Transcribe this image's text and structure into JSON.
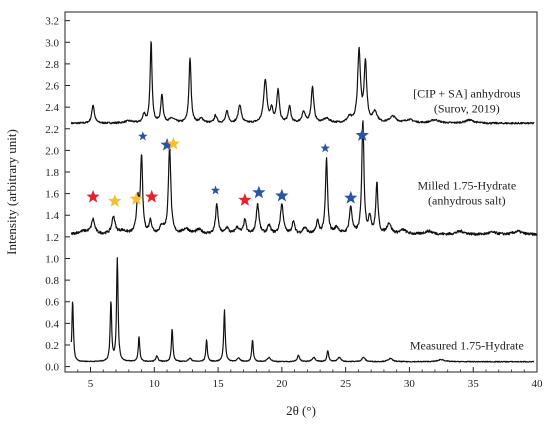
{
  "chart_data": {
    "type": "line",
    "xlabel": "2θ (°)",
    "ylabel": "Intensity (arbitrary unit)",
    "xlim": [
      3,
      40
    ],
    "ylim": [
      -0.05,
      3.28
    ],
    "xticks": [
      5,
      10,
      15,
      20,
      25,
      30,
      35,
      40
    ],
    "xtick_labels": [
      "5",
      "10",
      "15",
      "20",
      "25",
      "30",
      "35",
      "40"
    ],
    "yticks": [
      0.0,
      0.2,
      0.4,
      0.6,
      0.8,
      1.0,
      1.2,
      1.4,
      1.6,
      1.8,
      2.0,
      2.2,
      2.4,
      2.6,
      2.8,
      3.0,
      3.2
    ],
    "ytick_labels": [
      "0.0",
      "0.2",
      "0.4",
      "0.6",
      "0.8",
      "1.0",
      "1.2",
      "1.4",
      "1.6",
      "1.8",
      "2.0",
      "2.2",
      "2.4",
      "2.6",
      "2.8",
      "3.0",
      "3.2"
    ],
    "grid": false,
    "line_color": "#111111",
    "star_colors": {
      "red": "#e8202a",
      "yellow": "#f5c030",
      "blue": "#2a55a5"
    },
    "series": [
      {
        "label_lines": [
          "[CIP + SA] anhydrous",
          "(Surov, 2019)"
        ],
        "label_position": [
          34.5,
          2.35
        ],
        "baseline": 2.25,
        "x_end": 39.8,
        "noise": 0.008,
        "peaks": [
          [
            5.2,
            0.17,
            0.12
          ],
          [
            8.0,
            0.02,
            0.4
          ],
          [
            9.2,
            0.08,
            0.12
          ],
          [
            9.75,
            0.75,
            0.09
          ],
          [
            10.6,
            0.26,
            0.1
          ],
          [
            11.4,
            0.04,
            0.3
          ],
          [
            12.8,
            0.6,
            0.1
          ],
          [
            13.7,
            0.04,
            0.2
          ],
          [
            14.8,
            0.07,
            0.12
          ],
          [
            15.7,
            0.11,
            0.12
          ],
          [
            16.7,
            0.17,
            0.14
          ],
          [
            18.7,
            0.4,
            0.15
          ],
          [
            19.2,
            0.12,
            0.12
          ],
          [
            19.7,
            0.3,
            0.12
          ],
          [
            20.6,
            0.15,
            0.12
          ],
          [
            21.7,
            0.1,
            0.15
          ],
          [
            22.4,
            0.33,
            0.12
          ],
          [
            23.5,
            0.04,
            0.3
          ],
          [
            25.3,
            0.05,
            0.2
          ],
          [
            26.05,
            0.66,
            0.13
          ],
          [
            26.55,
            0.55,
            0.12
          ],
          [
            27.3,
            0.1,
            0.2
          ],
          [
            28.7,
            0.06,
            0.3
          ],
          [
            30.0,
            0.03,
            0.4
          ],
          [
            32.0,
            0.03,
            0.4
          ],
          [
            34.7,
            0.03,
            0.4
          ]
        ]
      },
      {
        "label_lines": [
          "Milled 1.75-Hydrate",
          "(anhydrous salt)"
        ],
        "label_position": [
          34.5,
          1.5
        ],
        "baseline": 1.22,
        "x_end": 40.0,
        "noise": 0.012,
        "peaks": [
          [
            4.5,
            0.03,
            0.6
          ],
          [
            5.2,
            0.13,
            0.15
          ],
          [
            6.8,
            0.16,
            0.15
          ],
          [
            7.5,
            0.03,
            0.4
          ],
          [
            8.7,
            0.3,
            0.12
          ],
          [
            9.0,
            0.7,
            0.1
          ],
          [
            9.7,
            0.12,
            0.12
          ],
          [
            10.6,
            0.07,
            0.2
          ],
          [
            11.2,
            0.82,
            0.11
          ],
          [
            12.5,
            0.05,
            0.3
          ],
          [
            13.5,
            0.04,
            0.3
          ],
          [
            14.9,
            0.27,
            0.12
          ],
          [
            15.7,
            0.06,
            0.15
          ],
          [
            16.5,
            0.06,
            0.2
          ],
          [
            17.1,
            0.13,
            0.12
          ],
          [
            18.1,
            0.28,
            0.13
          ],
          [
            19.0,
            0.08,
            0.15
          ],
          [
            20.0,
            0.28,
            0.14
          ],
          [
            20.9,
            0.12,
            0.12
          ],
          [
            21.8,
            0.06,
            0.2
          ],
          [
            22.8,
            0.12,
            0.12
          ],
          [
            23.5,
            0.7,
            0.1
          ],
          [
            24.3,
            0.06,
            0.2
          ],
          [
            25.4,
            0.25,
            0.13
          ],
          [
            26.35,
            1.05,
            0.1
          ],
          [
            26.9,
            0.15,
            0.12
          ],
          [
            27.45,
            0.47,
            0.1
          ],
          [
            28.4,
            0.1,
            0.2
          ],
          [
            29.5,
            0.04,
            0.3
          ],
          [
            31.5,
            0.03,
            0.4
          ],
          [
            34.0,
            0.03,
            0.4
          ],
          [
            36.5,
            0.02,
            0.4
          ],
          [
            38.5,
            0.03,
            0.4
          ]
        ]
      },
      {
        "label_lines": [
          "Measured 1.75-Hydrate"
        ],
        "label_position": [
          34.5,
          0.16
        ],
        "baseline": 0.045,
        "x_end": 39.8,
        "noise": 0.004,
        "peaks": [
          [
            3.6,
            0.56,
            0.07
          ],
          [
            6.6,
            0.55,
            0.07
          ],
          [
            7.1,
            0.95,
            0.07
          ],
          [
            8.8,
            0.23,
            0.07
          ],
          [
            10.2,
            0.05,
            0.1
          ],
          [
            11.4,
            0.3,
            0.07
          ],
          [
            12.8,
            0.03,
            0.15
          ],
          [
            14.1,
            0.2,
            0.07
          ],
          [
            15.5,
            0.48,
            0.07
          ],
          [
            16.6,
            0.03,
            0.15
          ],
          [
            17.7,
            0.2,
            0.07
          ],
          [
            19.0,
            0.04,
            0.15
          ],
          [
            21.3,
            0.06,
            0.1
          ],
          [
            22.5,
            0.04,
            0.15
          ],
          [
            23.6,
            0.1,
            0.08
          ],
          [
            24.5,
            0.04,
            0.15
          ],
          [
            26.4,
            0.04,
            0.15
          ],
          [
            28.5,
            0.03,
            0.2
          ],
          [
            32.5,
            0.02,
            0.3
          ]
        ]
      }
    ],
    "stars": [
      {
        "x": 5.2,
        "y": 1.57,
        "color": "red",
        "size": "large"
      },
      {
        "x": 6.9,
        "y": 1.53,
        "color": "yellow",
        "size": "large"
      },
      {
        "x": 8.6,
        "y": 1.55,
        "color": "yellow",
        "size": "large"
      },
      {
        "x": 9.1,
        "y": 2.13,
        "color": "blue",
        "size": "small"
      },
      {
        "x": 9.8,
        "y": 1.57,
        "color": "red",
        "size": "large"
      },
      {
        "x": 11.0,
        "y": 2.05,
        "color": "blue",
        "size": "large"
      },
      {
        "x": 11.5,
        "y": 2.06,
        "color": "yellow",
        "size": "large"
      },
      {
        "x": 14.8,
        "y": 1.63,
        "color": "blue",
        "size": "small"
      },
      {
        "x": 17.1,
        "y": 1.54,
        "color": "red",
        "size": "large"
      },
      {
        "x": 18.2,
        "y": 1.61,
        "color": "blue",
        "size": "large"
      },
      {
        "x": 20.0,
        "y": 1.58,
        "color": "blue",
        "size": "large"
      },
      {
        "x": 23.4,
        "y": 2.02,
        "color": "blue",
        "size": "small"
      },
      {
        "x": 25.4,
        "y": 1.56,
        "color": "blue",
        "size": "large"
      },
      {
        "x": 26.3,
        "y": 2.14,
        "color": "blue",
        "size": "large"
      }
    ]
  }
}
